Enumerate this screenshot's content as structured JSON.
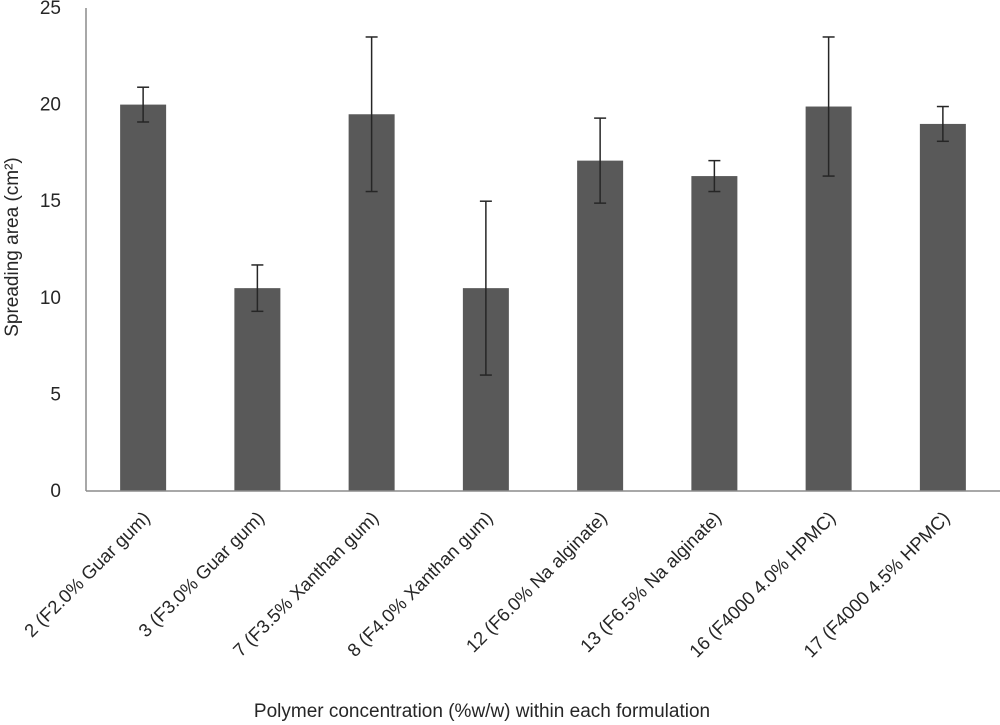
{
  "chart_data": {
    "type": "bar",
    "xlabel": "Polymer concentration (%w/w) within each formulation",
    "ylabel": "Spreading area (cm²)",
    "ylim": [
      0,
      25
    ],
    "yticks": [
      0,
      5,
      10,
      15,
      20,
      25
    ],
    "grid": false,
    "categories": [
      "2 (F2.0% Guar gum)",
      "3 (F3.0% Guar gum)",
      "7 (F3.5% Xanthan gum)",
      "8 (F4.0% Xanthan gum)",
      "12 (F6.0% Na alginate)",
      "13 (F6.5% Na alginate)",
      "16 (F4000 4.0% HPMC)",
      "17 (F4000 4.5% HPMC)"
    ],
    "values": [
      20.0,
      10.5,
      19.5,
      10.5,
      17.1,
      16.3,
      19.9,
      19.0
    ],
    "error": [
      0.9,
      1.2,
      4.0,
      4.5,
      2.2,
      0.8,
      3.6,
      0.9
    ],
    "colors": {
      "bar": "#595959",
      "axis": "#8c8c8c",
      "errorbar": "#262626"
    }
  }
}
